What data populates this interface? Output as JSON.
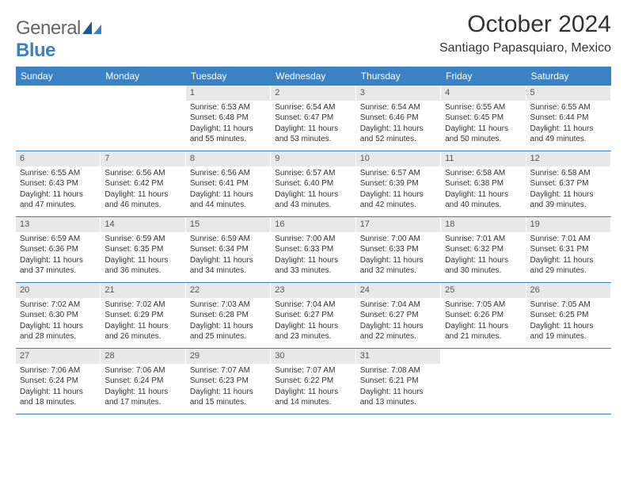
{
  "logo": {
    "text_general": "General",
    "text_blue": "Blue"
  },
  "title": "October 2024",
  "location": "Santiago Papasquiaro, Mexico",
  "colors": {
    "header_bg": "#3b82c4",
    "header_text": "#ffffff",
    "daynum_bg": "#e8e8e8",
    "border": "#3b82c4",
    "text": "#333333"
  },
  "days_of_week": [
    "Sunday",
    "Monday",
    "Tuesday",
    "Wednesday",
    "Thursday",
    "Friday",
    "Saturday"
  ],
  "weeks": [
    [
      {
        "n": "",
        "sr": "",
        "ss": "",
        "dl": ""
      },
      {
        "n": "",
        "sr": "",
        "ss": "",
        "dl": ""
      },
      {
        "n": "1",
        "sr": "Sunrise: 6:53 AM",
        "ss": "Sunset: 6:48 PM",
        "dl": "Daylight: 11 hours and 55 minutes."
      },
      {
        "n": "2",
        "sr": "Sunrise: 6:54 AM",
        "ss": "Sunset: 6:47 PM",
        "dl": "Daylight: 11 hours and 53 minutes."
      },
      {
        "n": "3",
        "sr": "Sunrise: 6:54 AM",
        "ss": "Sunset: 6:46 PM",
        "dl": "Daylight: 11 hours and 52 minutes."
      },
      {
        "n": "4",
        "sr": "Sunrise: 6:55 AM",
        "ss": "Sunset: 6:45 PM",
        "dl": "Daylight: 11 hours and 50 minutes."
      },
      {
        "n": "5",
        "sr": "Sunrise: 6:55 AM",
        "ss": "Sunset: 6:44 PM",
        "dl": "Daylight: 11 hours and 49 minutes."
      }
    ],
    [
      {
        "n": "6",
        "sr": "Sunrise: 6:55 AM",
        "ss": "Sunset: 6:43 PM",
        "dl": "Daylight: 11 hours and 47 minutes."
      },
      {
        "n": "7",
        "sr": "Sunrise: 6:56 AM",
        "ss": "Sunset: 6:42 PM",
        "dl": "Daylight: 11 hours and 46 minutes."
      },
      {
        "n": "8",
        "sr": "Sunrise: 6:56 AM",
        "ss": "Sunset: 6:41 PM",
        "dl": "Daylight: 11 hours and 44 minutes."
      },
      {
        "n": "9",
        "sr": "Sunrise: 6:57 AM",
        "ss": "Sunset: 6:40 PM",
        "dl": "Daylight: 11 hours and 43 minutes."
      },
      {
        "n": "10",
        "sr": "Sunrise: 6:57 AM",
        "ss": "Sunset: 6:39 PM",
        "dl": "Daylight: 11 hours and 42 minutes."
      },
      {
        "n": "11",
        "sr": "Sunrise: 6:58 AM",
        "ss": "Sunset: 6:38 PM",
        "dl": "Daylight: 11 hours and 40 minutes."
      },
      {
        "n": "12",
        "sr": "Sunrise: 6:58 AM",
        "ss": "Sunset: 6:37 PM",
        "dl": "Daylight: 11 hours and 39 minutes."
      }
    ],
    [
      {
        "n": "13",
        "sr": "Sunrise: 6:59 AM",
        "ss": "Sunset: 6:36 PM",
        "dl": "Daylight: 11 hours and 37 minutes."
      },
      {
        "n": "14",
        "sr": "Sunrise: 6:59 AM",
        "ss": "Sunset: 6:35 PM",
        "dl": "Daylight: 11 hours and 36 minutes."
      },
      {
        "n": "15",
        "sr": "Sunrise: 6:59 AM",
        "ss": "Sunset: 6:34 PM",
        "dl": "Daylight: 11 hours and 34 minutes."
      },
      {
        "n": "16",
        "sr": "Sunrise: 7:00 AM",
        "ss": "Sunset: 6:33 PM",
        "dl": "Daylight: 11 hours and 33 minutes."
      },
      {
        "n": "17",
        "sr": "Sunrise: 7:00 AM",
        "ss": "Sunset: 6:33 PM",
        "dl": "Daylight: 11 hours and 32 minutes."
      },
      {
        "n": "18",
        "sr": "Sunrise: 7:01 AM",
        "ss": "Sunset: 6:32 PM",
        "dl": "Daylight: 11 hours and 30 minutes."
      },
      {
        "n": "19",
        "sr": "Sunrise: 7:01 AM",
        "ss": "Sunset: 6:31 PM",
        "dl": "Daylight: 11 hours and 29 minutes."
      }
    ],
    [
      {
        "n": "20",
        "sr": "Sunrise: 7:02 AM",
        "ss": "Sunset: 6:30 PM",
        "dl": "Daylight: 11 hours and 28 minutes."
      },
      {
        "n": "21",
        "sr": "Sunrise: 7:02 AM",
        "ss": "Sunset: 6:29 PM",
        "dl": "Daylight: 11 hours and 26 minutes."
      },
      {
        "n": "22",
        "sr": "Sunrise: 7:03 AM",
        "ss": "Sunset: 6:28 PM",
        "dl": "Daylight: 11 hours and 25 minutes."
      },
      {
        "n": "23",
        "sr": "Sunrise: 7:04 AM",
        "ss": "Sunset: 6:27 PM",
        "dl": "Daylight: 11 hours and 23 minutes."
      },
      {
        "n": "24",
        "sr": "Sunrise: 7:04 AM",
        "ss": "Sunset: 6:27 PM",
        "dl": "Daylight: 11 hours and 22 minutes."
      },
      {
        "n": "25",
        "sr": "Sunrise: 7:05 AM",
        "ss": "Sunset: 6:26 PM",
        "dl": "Daylight: 11 hours and 21 minutes."
      },
      {
        "n": "26",
        "sr": "Sunrise: 7:05 AM",
        "ss": "Sunset: 6:25 PM",
        "dl": "Daylight: 11 hours and 19 minutes."
      }
    ],
    [
      {
        "n": "27",
        "sr": "Sunrise: 7:06 AM",
        "ss": "Sunset: 6:24 PM",
        "dl": "Daylight: 11 hours and 18 minutes."
      },
      {
        "n": "28",
        "sr": "Sunrise: 7:06 AM",
        "ss": "Sunset: 6:24 PM",
        "dl": "Daylight: 11 hours and 17 minutes."
      },
      {
        "n": "29",
        "sr": "Sunrise: 7:07 AM",
        "ss": "Sunset: 6:23 PM",
        "dl": "Daylight: 11 hours and 15 minutes."
      },
      {
        "n": "30",
        "sr": "Sunrise: 7:07 AM",
        "ss": "Sunset: 6:22 PM",
        "dl": "Daylight: 11 hours and 14 minutes."
      },
      {
        "n": "31",
        "sr": "Sunrise: 7:08 AM",
        "ss": "Sunset: 6:21 PM",
        "dl": "Daylight: 11 hours and 13 minutes."
      },
      {
        "n": "",
        "sr": "",
        "ss": "",
        "dl": ""
      },
      {
        "n": "",
        "sr": "",
        "ss": "",
        "dl": ""
      }
    ]
  ]
}
